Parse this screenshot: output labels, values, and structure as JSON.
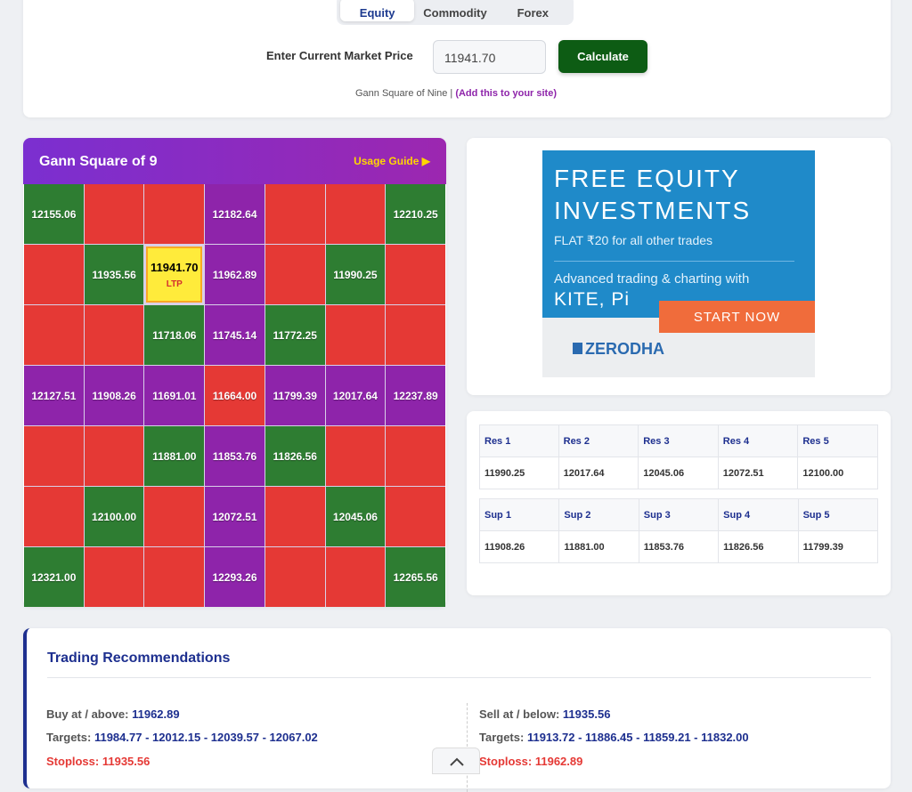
{
  "tabs": [
    "Equity",
    "Commodity",
    "Forex"
  ],
  "price_form": {
    "label": "Enter Current Market Price",
    "input_value": "11941.70",
    "button": "Calculate"
  },
  "footer_note": {
    "text": "Gann Square of Nine |",
    "link": "(Add this to your site)"
  },
  "gann": {
    "title": "Gann Square of 9",
    "guide": "Usage Guide ▶",
    "rows": [
      [
        {
          "text": "12155.06",
          "color": "green"
        },
        {
          "color": "red"
        },
        {
          "color": "red"
        },
        {
          "text": "12182.64",
          "color": "purple"
        },
        {
          "color": "red"
        },
        {
          "color": "red"
        },
        {
          "text": "12210.25",
          "color": "green"
        }
      ],
      [
        {
          "color": "red"
        },
        {
          "text": "11935.56",
          "color": "green"
        },
        {
          "text": "11941.70",
          "color": "yellow",
          "tag": "LTP"
        },
        {
          "text": "11962.89",
          "color": "purple"
        },
        {
          "color": "red"
        },
        {
          "text": "11990.25",
          "color": "green"
        },
        {
          "color": "red"
        }
      ],
      [
        {
          "color": "red"
        },
        {
          "color": "red"
        },
        {
          "text": "11718.06",
          "color": "green"
        },
        {
          "text": "11745.14",
          "color": "purple"
        },
        {
          "text": "11772.25",
          "color": "green"
        },
        {
          "color": "red"
        },
        {
          "color": "red"
        }
      ],
      [
        {
          "text": "12127.51",
          "color": "purple"
        },
        {
          "text": "11908.26",
          "color": "purple"
        },
        {
          "text": "11691.01",
          "color": "purple"
        },
        {
          "text": "11664.00",
          "color": "red"
        },
        {
          "text": "11799.39",
          "color": "purple"
        },
        {
          "text": "12017.64",
          "color": "purple"
        },
        {
          "text": "12237.89",
          "color": "purple"
        }
      ],
      [
        {
          "color": "red"
        },
        {
          "color": "red"
        },
        {
          "text": "11881.00",
          "color": "green"
        },
        {
          "text": "11853.76",
          "color": "purple"
        },
        {
          "text": "11826.56",
          "color": "green"
        },
        {
          "color": "red"
        },
        {
          "color": "red"
        }
      ],
      [
        {
          "color": "red"
        },
        {
          "text": "12100.00",
          "color": "green"
        },
        {
          "color": "red"
        },
        {
          "text": "12072.51",
          "color": "purple"
        },
        {
          "color": "red"
        },
        {
          "text": "12045.06",
          "color": "green"
        },
        {
          "color": "red"
        }
      ],
      [
        {
          "text": "12321.00",
          "color": "green"
        },
        {
          "color": "red"
        },
        {
          "color": "red"
        },
        {
          "text": "12293.26",
          "color": "purple"
        },
        {
          "color": "red"
        },
        {
          "color": "red"
        },
        {
          "text": "12265.56",
          "color": "green"
        }
      ]
    ]
  },
  "ad": {
    "headline_1": "FREE EQUITY",
    "headline_2": "INVESTMENTS",
    "subline": "FLAT ₹20 for all other trades",
    "body_1": "Advanced trading & charting with",
    "body_2": "KITE, Pi",
    "cta": "START NOW",
    "brand": "ZERODHA"
  },
  "levels": {
    "resistance": {
      "headers": [
        "Res 1",
        "Res 2",
        "Res 3",
        "Res 4",
        "Res 5"
      ],
      "values": [
        "11990.25",
        "12017.64",
        "12045.06",
        "12072.51",
        "12100.00"
      ]
    },
    "support": {
      "headers": [
        "Sup 1",
        "Sup 2",
        "Sup 3",
        "Sup 4",
        "Sup 5"
      ],
      "values": [
        "11908.26",
        "11881.00",
        "11853.76",
        "11826.56",
        "11799.39"
      ]
    }
  },
  "recommendations": {
    "title": "Trading Recommendations",
    "buy": {
      "entry_label": "Buy at / above:",
      "entry": "11962.89",
      "targets_label": "Targets:",
      "targets": "11984.77 - 12012.15 - 12039.57 - 12067.02",
      "stoploss_label": "Stoploss:",
      "stoploss": "11935.56"
    },
    "sell": {
      "entry_label": "Sell at / below:",
      "entry": "11935.56",
      "targets_label": "Targets:",
      "targets": "11913.72 - 11886.45 - 11859.21 - 11832.00",
      "stoploss_label": "Stoploss:",
      "stoploss": "11962.89"
    }
  }
}
